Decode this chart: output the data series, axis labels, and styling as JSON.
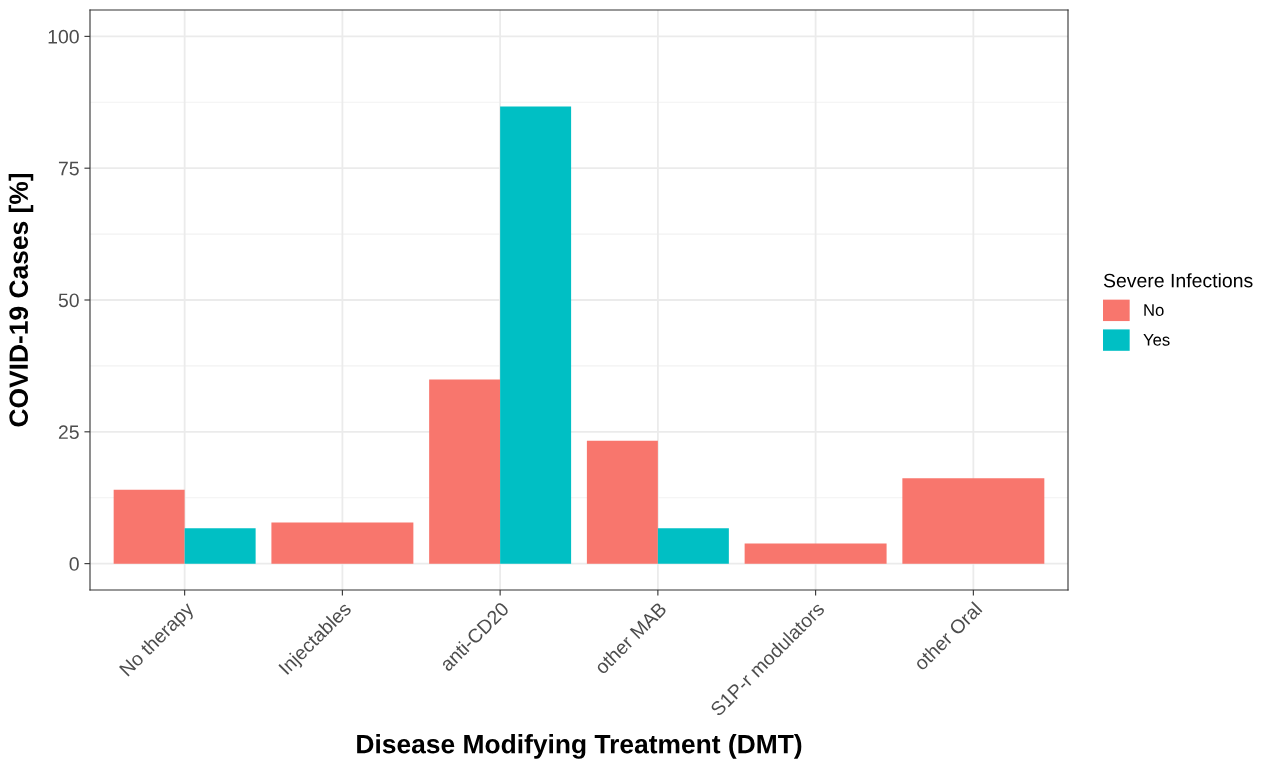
{
  "chart_data": {
    "type": "bar",
    "xlabel": "Disease Modifying Treatment (DMT)",
    "ylabel": "COVID-19 Cases [%]",
    "legend_title": "Severe Infections",
    "categories": [
      "No therapy",
      "Injectables",
      "anti-CD20",
      "other MAB",
      "S1P-r modulators",
      "other Oral"
    ],
    "series": [
      {
        "name": "No",
        "color": "#f8766d",
        "values": [
          14.0,
          7.8,
          34.9,
          23.3,
          3.8,
          16.2
        ]
      },
      {
        "name": "Yes",
        "color": "#00bfc4",
        "values": [
          6.7,
          null,
          86.7,
          6.7,
          null,
          null
        ]
      }
    ],
    "ylim": [
      -5,
      105
    ],
    "yticks": [
      0,
      25,
      50,
      75,
      100
    ],
    "grid": true,
    "legend": "right"
  }
}
